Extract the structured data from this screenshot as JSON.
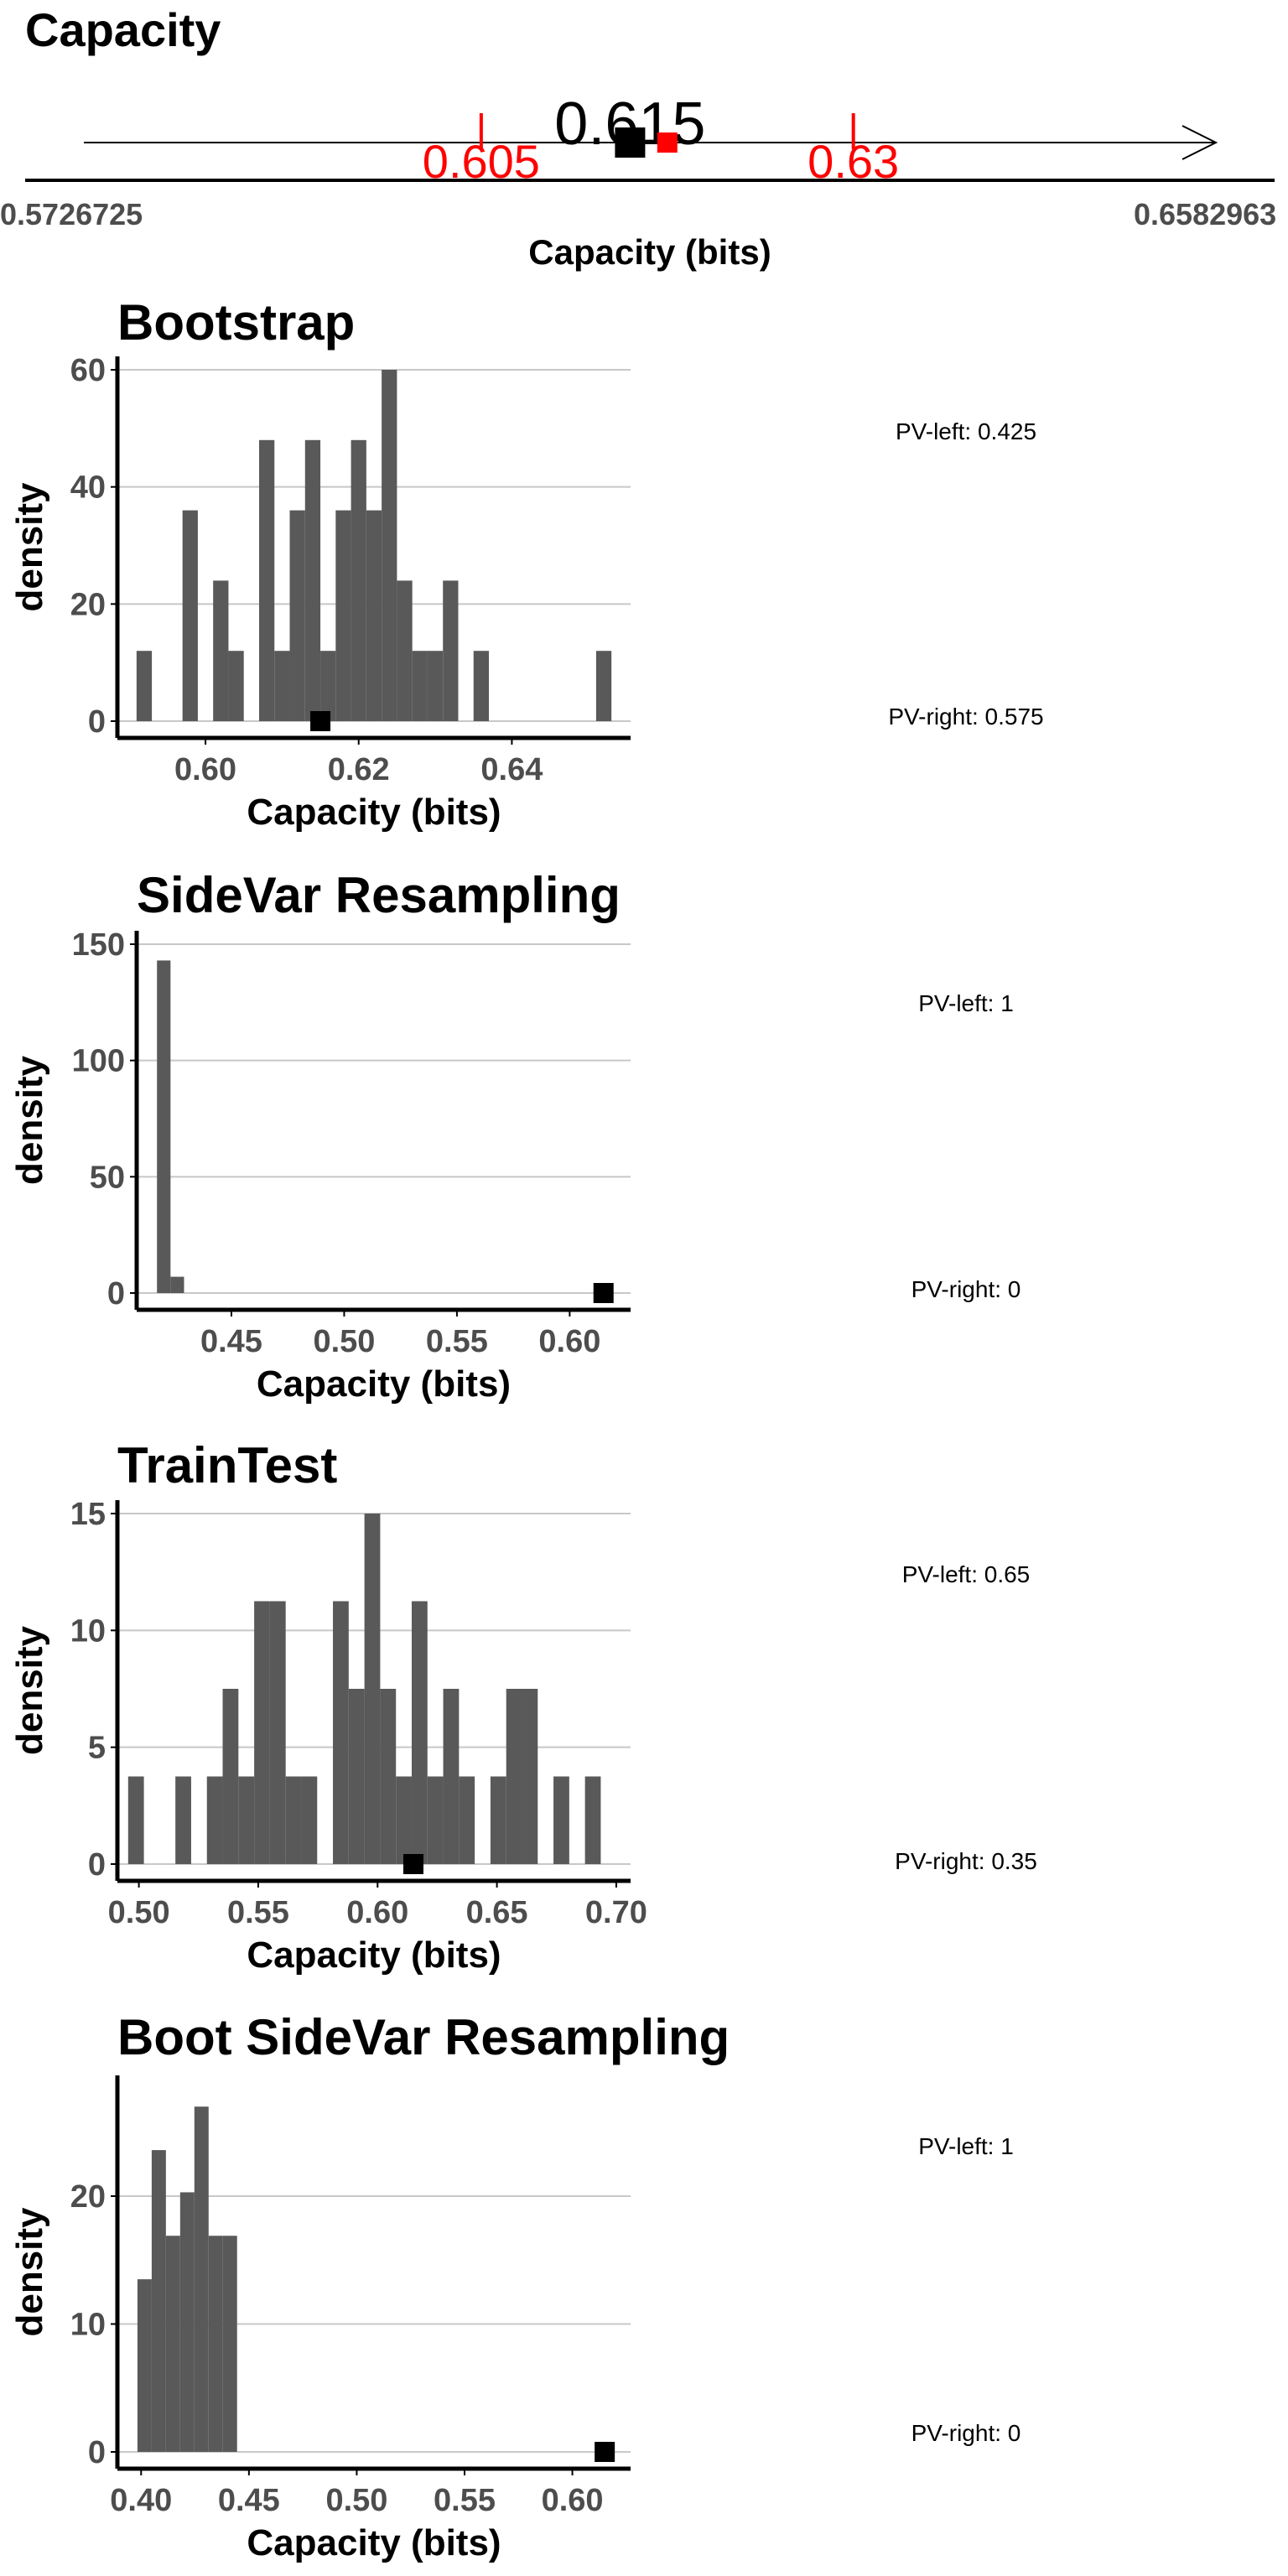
{
  "chart_data": [
    {
      "type": "number-line",
      "title": "Capacity",
      "xlabel": "Capacity (bits)",
      "xlim": [
        0.5726725,
        0.6582963
      ],
      "xlim_labels": [
        "0.5726725",
        "0.6582963"
      ],
      "point_estimate": 0.615,
      "point_label": "0.615",
      "ci_lower": 0.605,
      "ci_upper": 0.63,
      "ci_lower_label": "0.605",
      "ci_upper_label": "0.63",
      "red_marker": 0.6175,
      "colors": {
        "ci": "#ff0000",
        "point": "#000000"
      }
    },
    {
      "type": "bar",
      "title": "Bootstrap",
      "xlabel": "Capacity (bits)",
      "ylabel": "density",
      "xlim": [
        0.5885,
        0.6555
      ],
      "ylim": [
        0,
        60
      ],
      "xticks": [
        0.6,
        0.62,
        0.64
      ],
      "xtick_labels": [
        "0.60",
        "0.62",
        "0.64"
      ],
      "yticks": [
        0,
        20,
        40,
        60
      ],
      "ytick_labels": [
        "0",
        "20",
        "40",
        "60"
      ],
      "bin_width": 0.002,
      "bins_start": [
        0.591,
        0.597,
        0.601,
        0.603,
        0.607,
        0.609,
        0.611,
        0.613,
        0.615,
        0.617,
        0.619,
        0.621,
        0.623,
        0.625,
        0.627,
        0.629,
        0.631,
        0.635,
        0.651
      ],
      "values": [
        12,
        36,
        24,
        12,
        48,
        12,
        36,
        48,
        12,
        36,
        48,
        36,
        60,
        24,
        12,
        12,
        24,
        12,
        12
      ],
      "observed": 0.615,
      "pv_left_label": "PV-left: 0.425",
      "pv_right_label": "PV-right: 0.575",
      "colors": {
        "bars": "#595959",
        "grid": "#c8c8c8"
      }
    },
    {
      "type": "bar",
      "title": "SideVar Resampling",
      "xlabel": "Capacity (bits)",
      "ylabel": "density",
      "xlim": [
        0.408,
        0.627
      ],
      "ylim": [
        0,
        150
      ],
      "xticks": [
        0.45,
        0.5,
        0.55,
        0.6
      ],
      "xtick_labels": [
        "0.45",
        "0.50",
        "0.55",
        "0.60"
      ],
      "yticks": [
        0,
        50,
        100,
        150
      ],
      "ytick_labels": [
        "0",
        "50",
        "100",
        "150"
      ],
      "bin_width": 0.006,
      "bins_start": [
        0.417,
        0.423
      ],
      "values": [
        143,
        7
      ],
      "observed": 0.615,
      "pv_left_label": "PV-left: 1",
      "pv_right_label": "PV-right: 0",
      "colors": {
        "bars": "#595959",
        "grid": "#c8c8c8"
      }
    },
    {
      "type": "bar",
      "title": "TrainTest",
      "xlabel": "Capacity (bits)",
      "ylabel": "density",
      "xlim": [
        0.491,
        0.706
      ],
      "ylim": [
        0,
        15
      ],
      "xticks": [
        0.5,
        0.55,
        0.6,
        0.65,
        0.7
      ],
      "xtick_labels": [
        "0.50",
        "0.55",
        "0.60",
        "0.65",
        "0.70"
      ],
      "yticks": [
        0,
        5,
        10,
        15
      ],
      "ytick_labels": [
        "0",
        "5",
        "10",
        "15"
      ],
      "bin_width": 0.0066,
      "bins_start": [
        0.4955,
        0.5153,
        0.5285,
        0.5351,
        0.5417,
        0.5483,
        0.5549,
        0.5615,
        0.5681,
        0.5813,
        0.5879,
        0.5945,
        0.6011,
        0.6077,
        0.6143,
        0.6209,
        0.6275,
        0.6341,
        0.6473,
        0.6539,
        0.6605,
        0.6737,
        0.6869
      ],
      "values": [
        3.75,
        3.75,
        3.75,
        7.5,
        3.75,
        11.25,
        11.25,
        3.75,
        3.75,
        11.25,
        7.5,
        15,
        7.5,
        3.75,
        11.25,
        3.75,
        7.5,
        3.75,
        3.75,
        7.5,
        7.5,
        3.75,
        3.75
      ],
      "observed": 0.615,
      "pv_left_label": "PV-left: 0.65",
      "pv_right_label": "PV-right: 0.35",
      "colors": {
        "bars": "#595959",
        "grid": "#c8c8c8"
      }
    },
    {
      "type": "bar",
      "title": "Boot SideVar Resampling",
      "xlabel": "Capacity (bits)",
      "ylabel": "density",
      "xlim": [
        0.389,
        0.627
      ],
      "ylim": [
        0,
        28
      ],
      "xticks": [
        0.4,
        0.45,
        0.5,
        0.55,
        0.6
      ],
      "xtick_labels": [
        "0.40",
        "0.45",
        "0.50",
        "0.55",
        "0.60"
      ],
      "yticks": [
        0,
        10,
        20
      ],
      "ytick_labels": [
        "0",
        "10",
        "20"
      ],
      "bin_width": 0.0066,
      "bins_start": [
        0.3983,
        0.4049,
        0.4115,
        0.4181,
        0.4247,
        0.4313,
        0.4379
      ],
      "values": [
        13.5,
        23.6,
        16.9,
        20.3,
        27.0,
        16.9,
        16.9
      ],
      "observed": 0.615,
      "pv_left_label": "PV-left: 1",
      "pv_right_label": "PV-right: 0",
      "colors": {
        "bars": "#595959",
        "grid": "#c8c8c8"
      }
    }
  ]
}
